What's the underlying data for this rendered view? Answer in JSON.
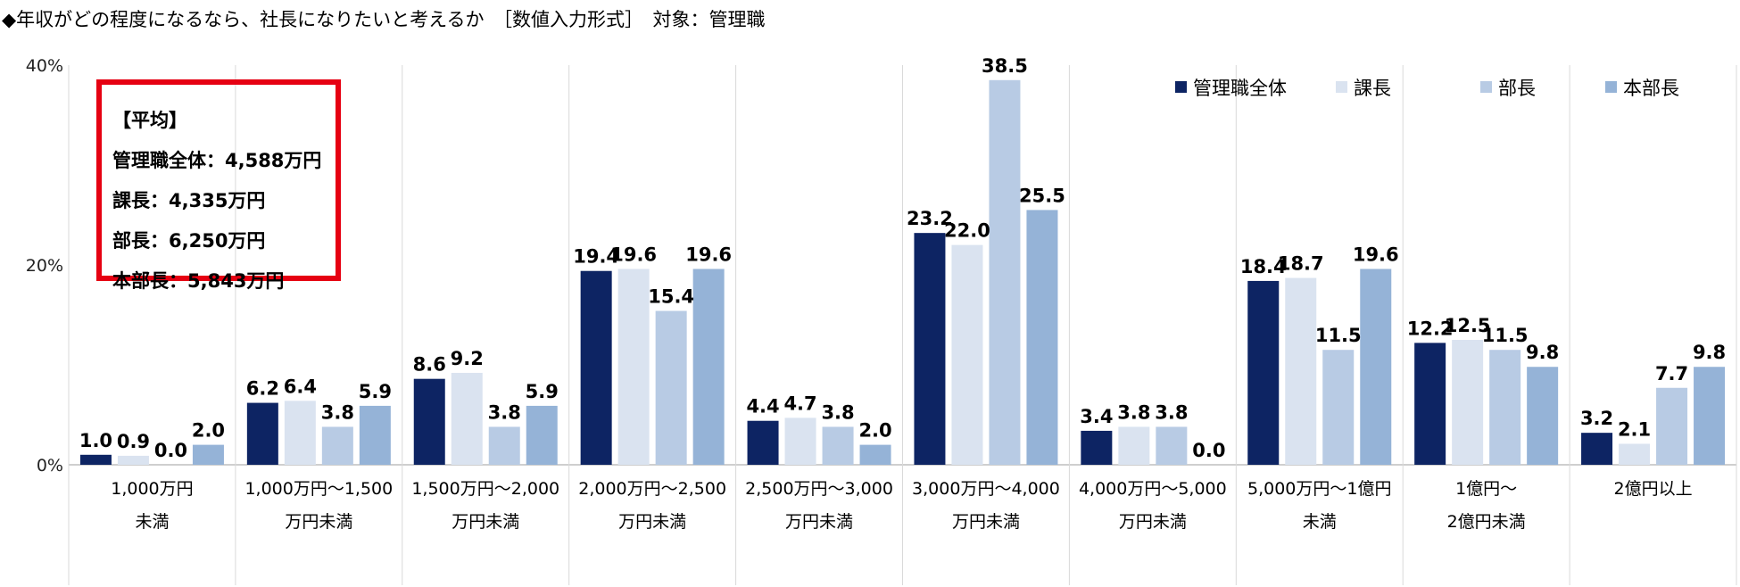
{
  "title": "◆年収がどの程度になるなら、社長になりたいと考えるか　［数値入力形式］　対象：管理職",
  "average_box": {
    "heading": "【平均】",
    "lines": [
      "管理職全体：4,588万円",
      "課長：4,335万円",
      "部長：6,250万円",
      "本部長：5,843万円"
    ]
  },
  "chart_data": {
    "type": "bar",
    "title": "",
    "xlabel": "",
    "ylabel": "",
    "ylim": [
      0,
      40
    ],
    "yticks": [
      "0%",
      "20%",
      "40%"
    ],
    "legend_position": "top-right",
    "categories": [
      [
        "1,000万円",
        "未満"
      ],
      [
        "1,000万円～1,500",
        "万円未満"
      ],
      [
        "1,500万円～2,000",
        "万円未満"
      ],
      [
        "2,000万円～2,500",
        "万円未満"
      ],
      [
        "2,500万円～3,000",
        "万円未満"
      ],
      [
        "3,000万円～4,000",
        "万円未満"
      ],
      [
        "4,000万円～5,000",
        "万円未満"
      ],
      [
        "5,000万円～1億円",
        "未満"
      ],
      [
        "1億円～",
        "2億円未満"
      ],
      [
        "2億円以上",
        ""
      ]
    ],
    "series": [
      {
        "name": "管理職全体",
        "color": "#0d2463",
        "values": [
          1.0,
          6.2,
          8.6,
          19.4,
          4.4,
          23.2,
          3.4,
          18.4,
          12.2,
          3.2
        ]
      },
      {
        "name": "課長",
        "color": "#dae3f0",
        "values": [
          0.9,
          6.4,
          9.2,
          19.6,
          4.7,
          22.0,
          3.8,
          18.7,
          12.5,
          2.1
        ]
      },
      {
        "name": "部長",
        "color": "#b8cbe4",
        "values": [
          0.0,
          3.8,
          3.8,
          15.4,
          3.8,
          38.5,
          3.8,
          11.5,
          11.5,
          7.7
        ]
      },
      {
        "name": "本部長",
        "color": "#95b3d7",
        "values": [
          2.0,
          5.9,
          5.9,
          19.6,
          2.0,
          25.5,
          0.0,
          19.6,
          9.8,
          9.8
        ]
      }
    ]
  }
}
